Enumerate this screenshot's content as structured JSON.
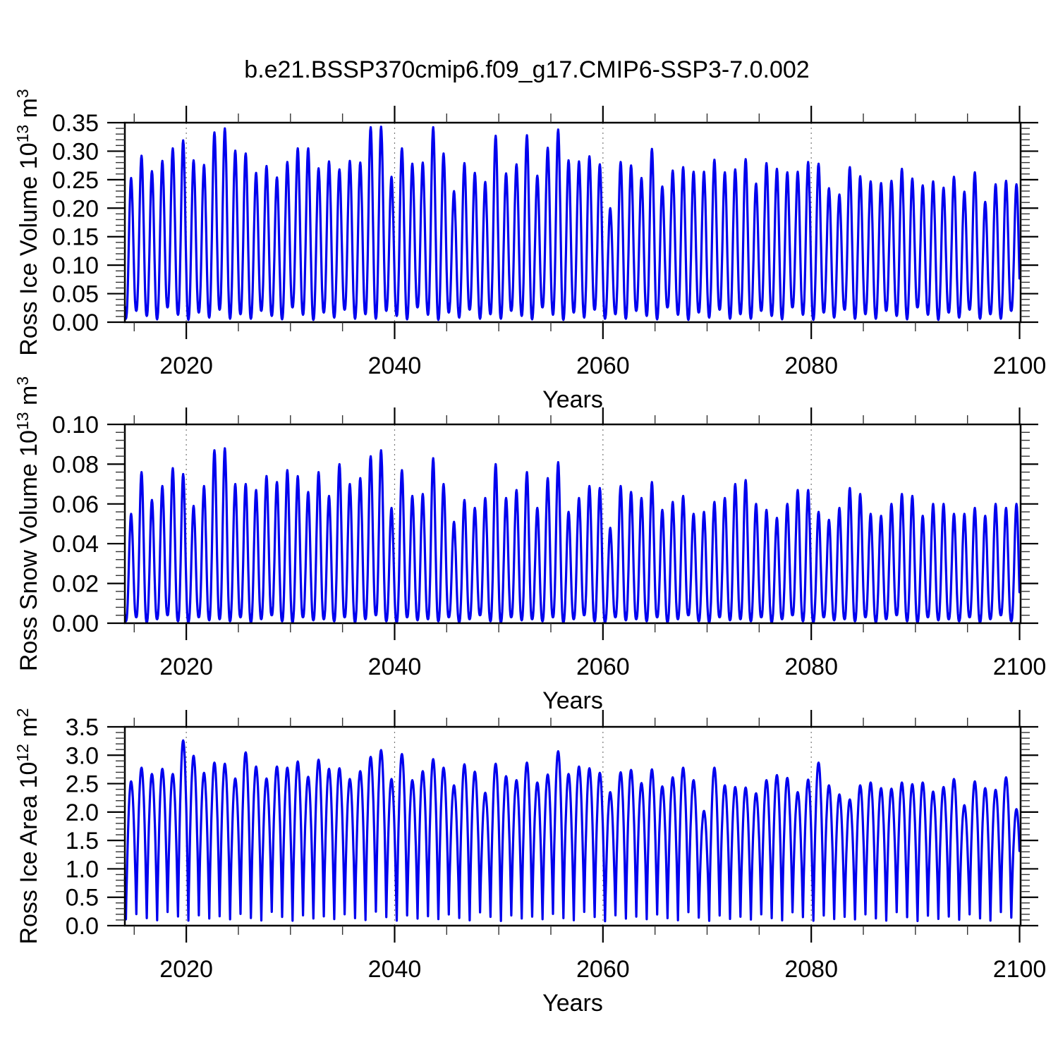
{
  "title": "b.e21.BSSP370cmip6.f09_g17.CMIP6-SSP3-7.0.002",
  "style": {
    "line_color": "#0000ee",
    "axis_color": "#000000",
    "minor_tick_color": "#333333",
    "grid_color": "#777777",
    "background": "#ffffff"
  },
  "chart_data": [
    {
      "type": "line",
      "name": "ross-ice-volume",
      "ylabel_segments": [
        [
          "Ross Ice Volume 10",
          false
        ],
        [
          "13",
          true
        ],
        [
          " m",
          false
        ],
        [
          "3",
          true
        ]
      ],
      "xlabel": "Years",
      "ylim": [
        0,
        0.35
      ],
      "ytick_step": 0.05,
      "yminor_step": 0.01,
      "ytick_labels": [
        "0.00",
        "0.05",
        "0.10",
        "0.15",
        "0.20",
        "0.25",
        "0.30",
        "0.35"
      ],
      "xlim": [
        2014.1,
        2100.1
      ],
      "xticks": [
        2020,
        2040,
        2060,
        2080,
        2100
      ],
      "xtick_labels": [
        "2020",
        "2040",
        "2060",
        "2080",
        "2100"
      ],
      "xminor_step": 5,
      "grid_years": [
        2020,
        2040,
        2060,
        2080
      ],
      "legend": "none",
      "grid": "vertical-dashed",
      "seasonal_sharpness": 1.25,
      "trough_phase": 0.2,
      "data_start": 2014.12,
      "data_end": 2100.0,
      "peak_year_start": 2014,
      "annual_peaks": [
        0.253,
        0.292,
        0.265,
        0.283,
        0.305,
        0.319,
        0.284,
        0.276,
        0.333,
        0.34,
        0.301,
        0.296,
        0.262,
        0.274,
        0.254,
        0.281,
        0.305,
        0.305,
        0.27,
        0.282,
        0.268,
        0.283,
        0.28,
        0.342,
        0.343,
        0.255,
        0.305,
        0.278,
        0.28,
        0.342,
        0.296,
        0.23,
        0.279,
        0.262,
        0.246,
        0.327,
        0.261,
        0.277,
        0.328,
        0.257,
        0.306,
        0.338,
        0.284,
        0.282,
        0.291,
        0.277,
        0.2,
        0.281,
        0.275,
        0.253,
        0.304,
        0.238,
        0.266,
        0.272,
        0.264,
        0.264,
        0.285,
        0.263,
        0.268,
        0.286,
        0.243,
        0.279,
        0.269,
        0.263,
        0.264,
        0.281,
        0.278,
        0.235,
        0.224,
        0.272,
        0.256,
        0.247,
        0.244,
        0.248,
        0.269,
        0.252,
        0.24,
        0.247,
        0.236,
        0.255,
        0.229,
        0.263,
        0.211,
        0.242,
        0.248,
        0.242
      ],
      "annual_trough_cycle": [
        0.006,
        0.02,
        0.011,
        0.005,
        0.026,
        0.013,
        0.004,
        0.017,
        0.008,
        0.022,
        0.006,
        0.014
      ]
    },
    {
      "type": "line",
      "name": "ross-snow-volume",
      "ylabel_segments": [
        [
          "Ross Snow Volume 10",
          false
        ],
        [
          "13",
          true
        ],
        [
          " m",
          false
        ],
        [
          "3",
          true
        ]
      ],
      "xlabel": "Years",
      "ylim": [
        0,
        0.1
      ],
      "ytick_step": 0.02,
      "yminor_step": 0.004,
      "ytick_labels": [
        "0.00",
        "0.02",
        "0.04",
        "0.06",
        "0.08",
        "0.10"
      ],
      "xlim": [
        2014.1,
        2100.1
      ],
      "xticks": [
        2020,
        2040,
        2060,
        2080,
        2100
      ],
      "xtick_labels": [
        "2020",
        "2040",
        "2060",
        "2080",
        "2100"
      ],
      "xminor_step": 5,
      "grid_years": [
        2020,
        2040,
        2060,
        2080
      ],
      "legend": "none",
      "grid": "vertical-dashed",
      "seasonal_sharpness": 1.35,
      "trough_phase": 0.2,
      "data_start": 2014.12,
      "data_end": 2100.0,
      "peak_year_start": 2014,
      "annual_peaks": [
        0.055,
        0.076,
        0.062,
        0.069,
        0.078,
        0.075,
        0.059,
        0.069,
        0.087,
        0.088,
        0.07,
        0.07,
        0.067,
        0.074,
        0.071,
        0.077,
        0.074,
        0.066,
        0.076,
        0.064,
        0.08,
        0.07,
        0.073,
        0.084,
        0.087,
        0.058,
        0.077,
        0.064,
        0.065,
        0.083,
        0.07,
        0.051,
        0.062,
        0.058,
        0.063,
        0.08,
        0.063,
        0.067,
        0.076,
        0.058,
        0.073,
        0.081,
        0.056,
        0.063,
        0.069,
        0.068,
        0.048,
        0.069,
        0.066,
        0.063,
        0.071,
        0.057,
        0.061,
        0.064,
        0.055,
        0.056,
        0.061,
        0.063,
        0.07,
        0.072,
        0.06,
        0.057,
        0.053,
        0.06,
        0.067,
        0.067,
        0.056,
        0.052,
        0.058,
        0.068,
        0.065,
        0.055,
        0.054,
        0.06,
        0.065,
        0.064,
        0.054,
        0.06,
        0.06,
        0.055,
        0.055,
        0.058,
        0.054,
        0.06,
        0.058,
        0.06
      ],
      "annual_trough_cycle": [
        0.001,
        0.003,
        0.0005,
        0.002,
        0.004,
        0.001,
        0.0005,
        0.003,
        0.0015,
        0.002
      ]
    },
    {
      "type": "line",
      "name": "ross-ice-area",
      "ylabel_segments": [
        [
          "Ross Ice Area 10",
          false
        ],
        [
          "12",
          true
        ],
        [
          " m",
          false
        ],
        [
          "2",
          true
        ]
      ],
      "xlabel": "Years",
      "ylim": [
        0,
        3.5
      ],
      "ytick_step": 0.5,
      "yminor_step": 0.1,
      "ytick_labels": [
        "0.0",
        "0.5",
        "1.0",
        "1.5",
        "2.0",
        "2.5",
        "3.0",
        "3.5"
      ],
      "xlim": [
        2014.1,
        2100.1
      ],
      "xticks": [
        2020,
        2040,
        2060,
        2080,
        2100
      ],
      "xtick_labels": [
        "2020",
        "2040",
        "2060",
        "2080",
        "2100"
      ],
      "xminor_step": 5,
      "grid_years": [
        2020,
        2040,
        2060,
        2080
      ],
      "legend": "none",
      "grid": "vertical-dashed",
      "seasonal_sharpness": 0.45,
      "trough_phase": 0.2,
      "data_start": 2014.12,
      "data_end": 2100.0,
      "peak_year_start": 2014,
      "annual_peaks": [
        2.54,
        2.78,
        2.67,
        2.76,
        2.67,
        3.26,
        2.99,
        2.69,
        2.87,
        2.85,
        2.59,
        3.05,
        2.8,
        2.59,
        2.8,
        2.78,
        2.89,
        2.62,
        2.92,
        2.76,
        2.77,
        2.58,
        2.72,
        2.97,
        3.09,
        2.58,
        3.02,
        2.56,
        2.72,
        2.93,
        2.78,
        2.47,
        2.84,
        2.71,
        2.34,
        2.85,
        2.63,
        2.56,
        2.87,
        2.52,
        2.66,
        3.07,
        2.67,
        2.8,
        2.77,
        2.69,
        2.35,
        2.7,
        2.74,
        2.51,
        2.75,
        2.45,
        2.61,
        2.78,
        2.56,
        2.02,
        2.78,
        2.47,
        2.44,
        2.43,
        2.33,
        2.56,
        2.65,
        2.6,
        2.35,
        2.57,
        2.87,
        2.47,
        2.31,
        2.22,
        2.47,
        2.52,
        2.42,
        2.41,
        2.52,
        2.49,
        2.52,
        2.36,
        2.44,
        2.58,
        2.12,
        2.54,
        2.42,
        2.39,
        2.61,
        2.05
      ],
      "annual_trough_cycle": [
        0.07,
        0.16,
        0.09,
        0.05,
        0.2,
        0.11,
        0.04,
        0.14,
        0.08,
        0.12
      ]
    }
  ]
}
